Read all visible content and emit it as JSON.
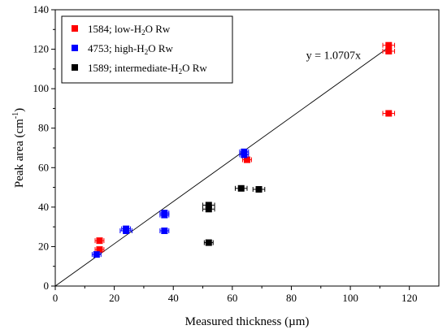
{
  "chart_data": {
    "type": "scatter",
    "xlabel": "Measured thickness (µm)",
    "ylabel_main": "Peak area (cm",
    "ylabel_sup": "-1",
    "ylabel_end": ")",
    "xlim": [
      0,
      130
    ],
    "ylim": [
      0,
      140
    ],
    "xticks": [
      0,
      20,
      40,
      60,
      80,
      100,
      120
    ],
    "yticks": [
      0,
      20,
      40,
      60,
      80,
      100,
      120,
      140
    ],
    "series": [
      {
        "name_pre": "1584; low-H",
        "name_sub": "2",
        "name_post": "O Rw",
        "color": "#ff0000",
        "points": [
          {
            "x": 15,
            "y": 23,
            "xerr": 1.5
          },
          {
            "x": 15,
            "y": 18.5,
            "xerr": 1.5
          },
          {
            "x": 65,
            "y": 64,
            "xerr": 1.5
          },
          {
            "x": 113,
            "y": 122,
            "xerr": 2
          },
          {
            "x": 113,
            "y": 119,
            "xerr": 2
          },
          {
            "x": 113,
            "y": 87.5,
            "xerr": 2
          }
        ]
      },
      {
        "name_pre": "4753; high-H",
        "name_sub": "2",
        "name_post": "O Rw",
        "color": "#0000ff",
        "points": [
          {
            "x": 14,
            "y": 16,
            "xerr": 1.5
          },
          {
            "x": 24,
            "y": 28,
            "xerr": 2
          },
          {
            "x": 24,
            "y": 29,
            "xerr": 1.5
          },
          {
            "x": 37,
            "y": 28,
            "xerr": 1.5
          },
          {
            "x": 37,
            "y": 36,
            "xerr": 1.5
          },
          {
            "x": 37,
            "y": 37,
            "xerr": 1.5
          },
          {
            "x": 64,
            "y": 68,
            "xerr": 1.5
          },
          {
            "x": 64,
            "y": 66.5,
            "xerr": 1.5
          }
        ]
      },
      {
        "name_pre": "1589; intermediate-H",
        "name_sub": "2",
        "name_post": "O Rw",
        "color": "#000000",
        "points": [
          {
            "x": 52,
            "y": 22,
            "xerr": 1.5
          },
          {
            "x": 52,
            "y": 39,
            "xerr": 2
          },
          {
            "x": 52,
            "y": 41,
            "xerr": 2
          },
          {
            "x": 63,
            "y": 49.5,
            "xerr": 2
          },
          {
            "x": 69,
            "y": 49,
            "xerr": 2
          }
        ]
      }
    ],
    "fit_line": {
      "slope": 1.0707,
      "x_start": 0,
      "x_end": 113
    },
    "annotation": "y = 1.0707x",
    "annotation_at": {
      "x": 85,
      "y": 115
    },
    "legend_position": "top-left",
    "grid": false
  }
}
